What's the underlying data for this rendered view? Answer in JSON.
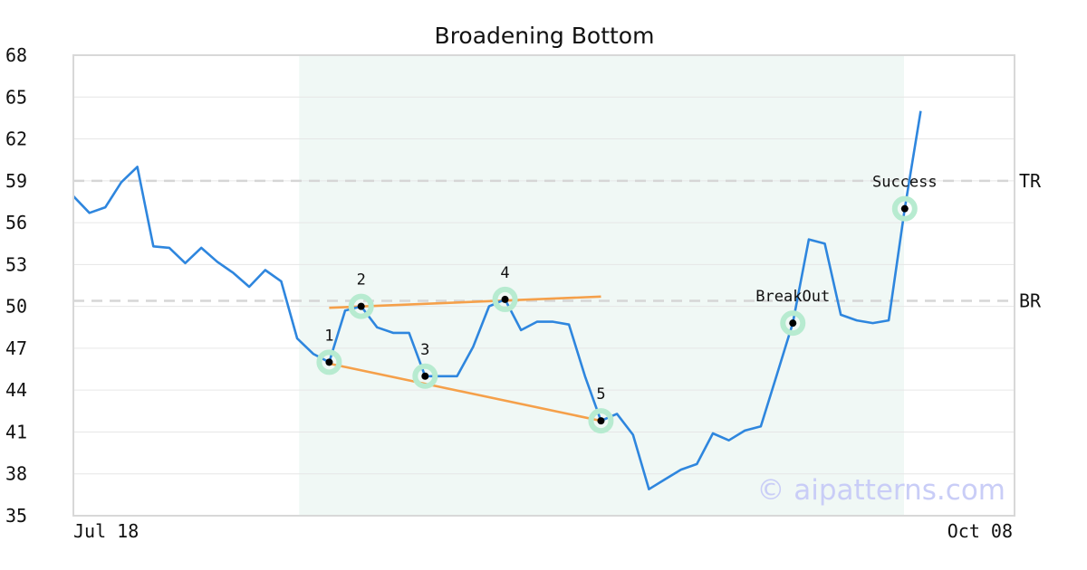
{
  "chart_data": {
    "type": "line",
    "title": "Broadening Bottom",
    "xlabel": "",
    "ylabel": "",
    "ylim": [
      35,
      68
    ],
    "yticks": [
      68,
      65,
      62,
      59,
      56,
      53,
      50,
      47,
      44,
      41,
      38,
      35
    ],
    "x_tick_labels": [
      "Jul 18",
      "Oct 08"
    ],
    "grid": true,
    "series": [
      {
        "color": "#2e86de",
        "values": [
          57.9,
          56.7,
          57.1,
          58.9,
          60.0,
          54.3,
          54.2,
          53.1,
          54.2,
          53.2,
          52.4,
          51.4,
          52.6,
          51.8,
          47.7,
          46.6,
          46.0,
          49.7,
          50.0,
          48.5,
          48.1,
          48.1,
          45.0,
          45.0,
          45.0,
          47.1,
          50.0,
          50.5,
          48.3,
          48.9,
          48.9,
          48.7,
          45.0,
          41.8,
          42.3,
          40.8,
          36.9,
          37.6,
          38.3,
          38.7,
          40.9,
          40.4,
          41.1,
          41.4,
          45.1,
          48.8,
          54.8,
          54.5,
          49.4,
          49.0,
          48.8,
          49.0,
          57.0,
          64.0
        ]
      }
    ],
    "pattern_zone": {
      "start_index": 14,
      "end_index": 52,
      "color": "#f0f8f5"
    },
    "horizontal_levels": [
      {
        "label": "TR",
        "value": 59.0
      },
      {
        "label": "BR",
        "value": 50.4
      }
    ],
    "trendlines": [
      {
        "color": "#f5a04a",
        "from": {
          "index": 16,
          "value": 49.9
        },
        "to": {
          "index": 33,
          "value": 50.7
        }
      },
      {
        "color": "#f5a04a",
        "from": {
          "index": 16,
          "value": 45.9
        },
        "to": {
          "index": 33,
          "value": 41.8
        }
      }
    ],
    "pattern_points": [
      {
        "label": "1",
        "index": 16,
        "value": 46.0
      },
      {
        "label": "2",
        "index": 18,
        "value": 50.0
      },
      {
        "label": "3",
        "index": 22,
        "value": 45.0
      },
      {
        "label": "4",
        "index": 27,
        "value": 50.5
      },
      {
        "label": "5",
        "index": 33,
        "value": 41.8
      },
      {
        "label": "BreakOut",
        "index": 45,
        "value": 48.8
      },
      {
        "label": "Success",
        "index": 52,
        "value": 57.0
      }
    ],
    "watermark": "© aipatterns.com"
  }
}
